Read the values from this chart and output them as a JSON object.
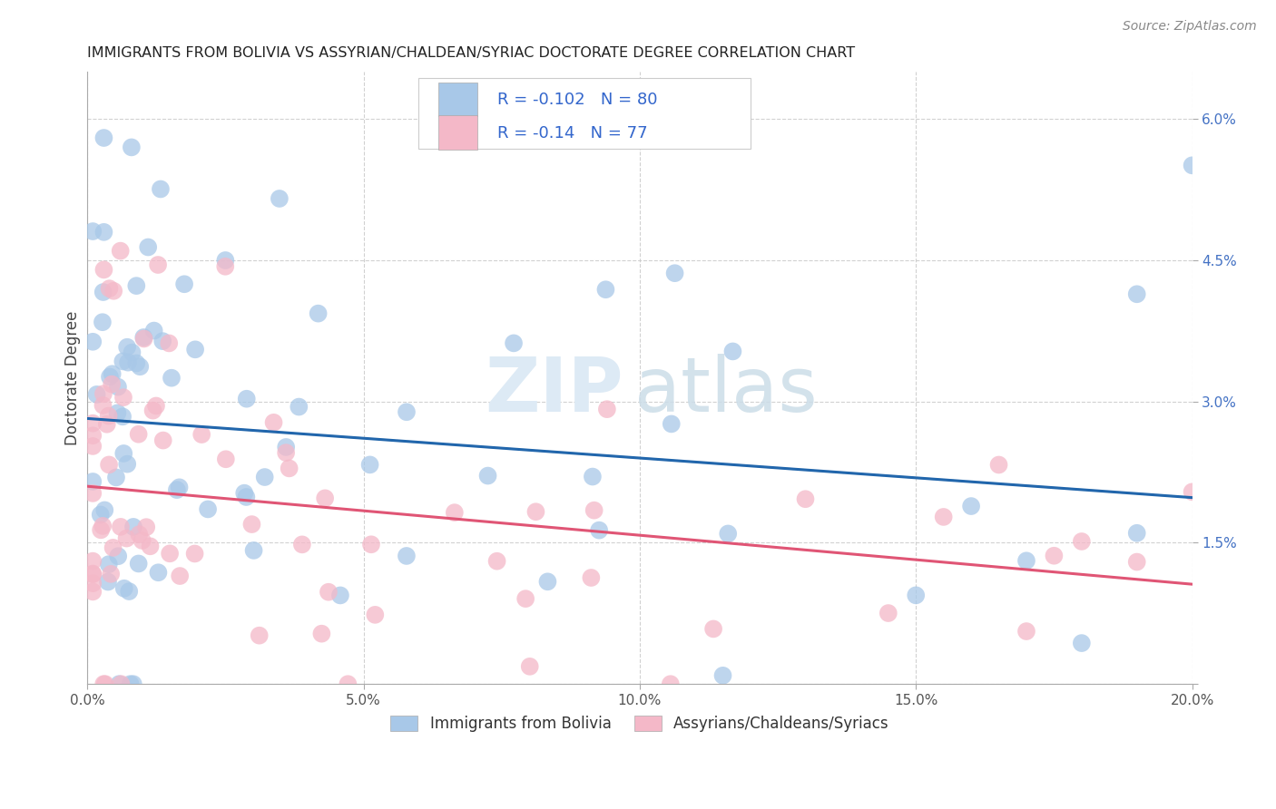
{
  "title": "IMMIGRANTS FROM BOLIVIA VS ASSYRIAN/CHALDEAN/SYRIAC DOCTORATE DEGREE CORRELATION CHART",
  "source": "Source: ZipAtlas.com",
  "ylabel": "Doctorate Degree",
  "legend_label1": "Immigrants from Bolivia",
  "legend_label2": "Assyrians/Chaldeans/Syriacs",
  "R1": -0.102,
  "N1": 80,
  "R2": -0.14,
  "N2": 77,
  "xlim": [
    0.0,
    0.2
  ],
  "ylim": [
    0.0,
    0.065
  ],
  "color_blue": "#a8c8e8",
  "color_pink": "#f4b8c8",
  "line_blue": "#2166ac",
  "line_pink": "#e05575",
  "line_gray": "#c0c0c0",
  "background": "#ffffff",
  "blue_intercept": 0.0282,
  "blue_slope": -0.042,
  "pink_intercept": 0.021,
  "pink_slope": -0.052,
  "gray_intercept": 0.0282,
  "gray_slope": -0.042
}
